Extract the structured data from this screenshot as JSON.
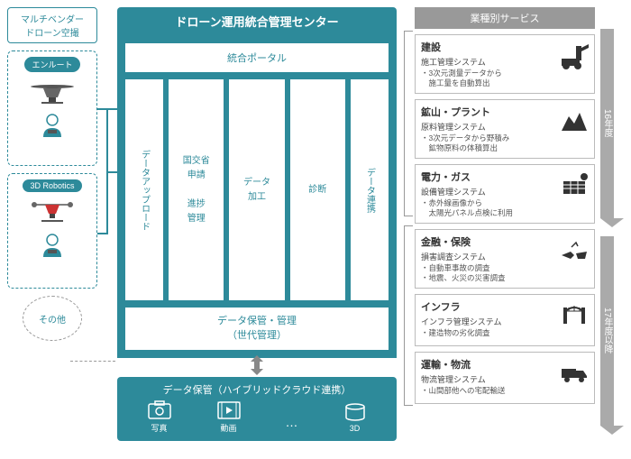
{
  "colors": {
    "teal": "#2d8a9a",
    "gray": "#999999",
    "text": "#444444",
    "border": "#bbbbbb",
    "arrow_gray": "#aaaaaa"
  },
  "left": {
    "header": "マルチベンダー\nドローン空撮",
    "vendors": [
      {
        "name": "エンルート"
      },
      {
        "name": "3D Robotics"
      }
    ],
    "other": "その他"
  },
  "center": {
    "title": "ドローン運用統合管理センター",
    "portal": "統合ポータル",
    "modules": {
      "upload": "データアップロード",
      "apply": "国交省\n申請\n\n進捗\n管理",
      "process": "データ\n加工",
      "diag": "診断",
      "link": "データ連携"
    },
    "storage": "データ保管・管理\n（世代管理）"
  },
  "cloud": {
    "title": "データ保管（ハイブリッドクラウド連携）",
    "items": [
      {
        "label": "写真"
      },
      {
        "label": "動画"
      },
      {
        "label": "…"
      },
      {
        "label": "3D"
      }
    ]
  },
  "right": {
    "header": "業種別サービス",
    "services": [
      {
        "title": "建設",
        "sub": "施工管理システム",
        "lines": "・3次元測量データから\n　施工量を自動算出"
      },
      {
        "title": "鉱山・プラント",
        "sub": "原料管理システム",
        "lines": "・3次元データから野積み\n　鉱物原料の体積算出"
      },
      {
        "title": "電力・ガス",
        "sub": "設備管理システム",
        "lines": "・赤外線画像から\n　太陽光パネル点検に利用"
      },
      {
        "title": "金融・保険",
        "sub": "損害調査システム",
        "lines": "・自動車事故の調査\n・地震、火災の災害調査"
      },
      {
        "title": "インフラ",
        "sub": "インフラ管理システム",
        "lines": "・建造物の劣化調査"
      },
      {
        "title": "運輸・物流",
        "sub": "物流管理システム",
        "lines": "・山間部他への宅配輸送"
      }
    ]
  },
  "years": {
    "y1": "16年度",
    "y2": "17年度以降"
  }
}
